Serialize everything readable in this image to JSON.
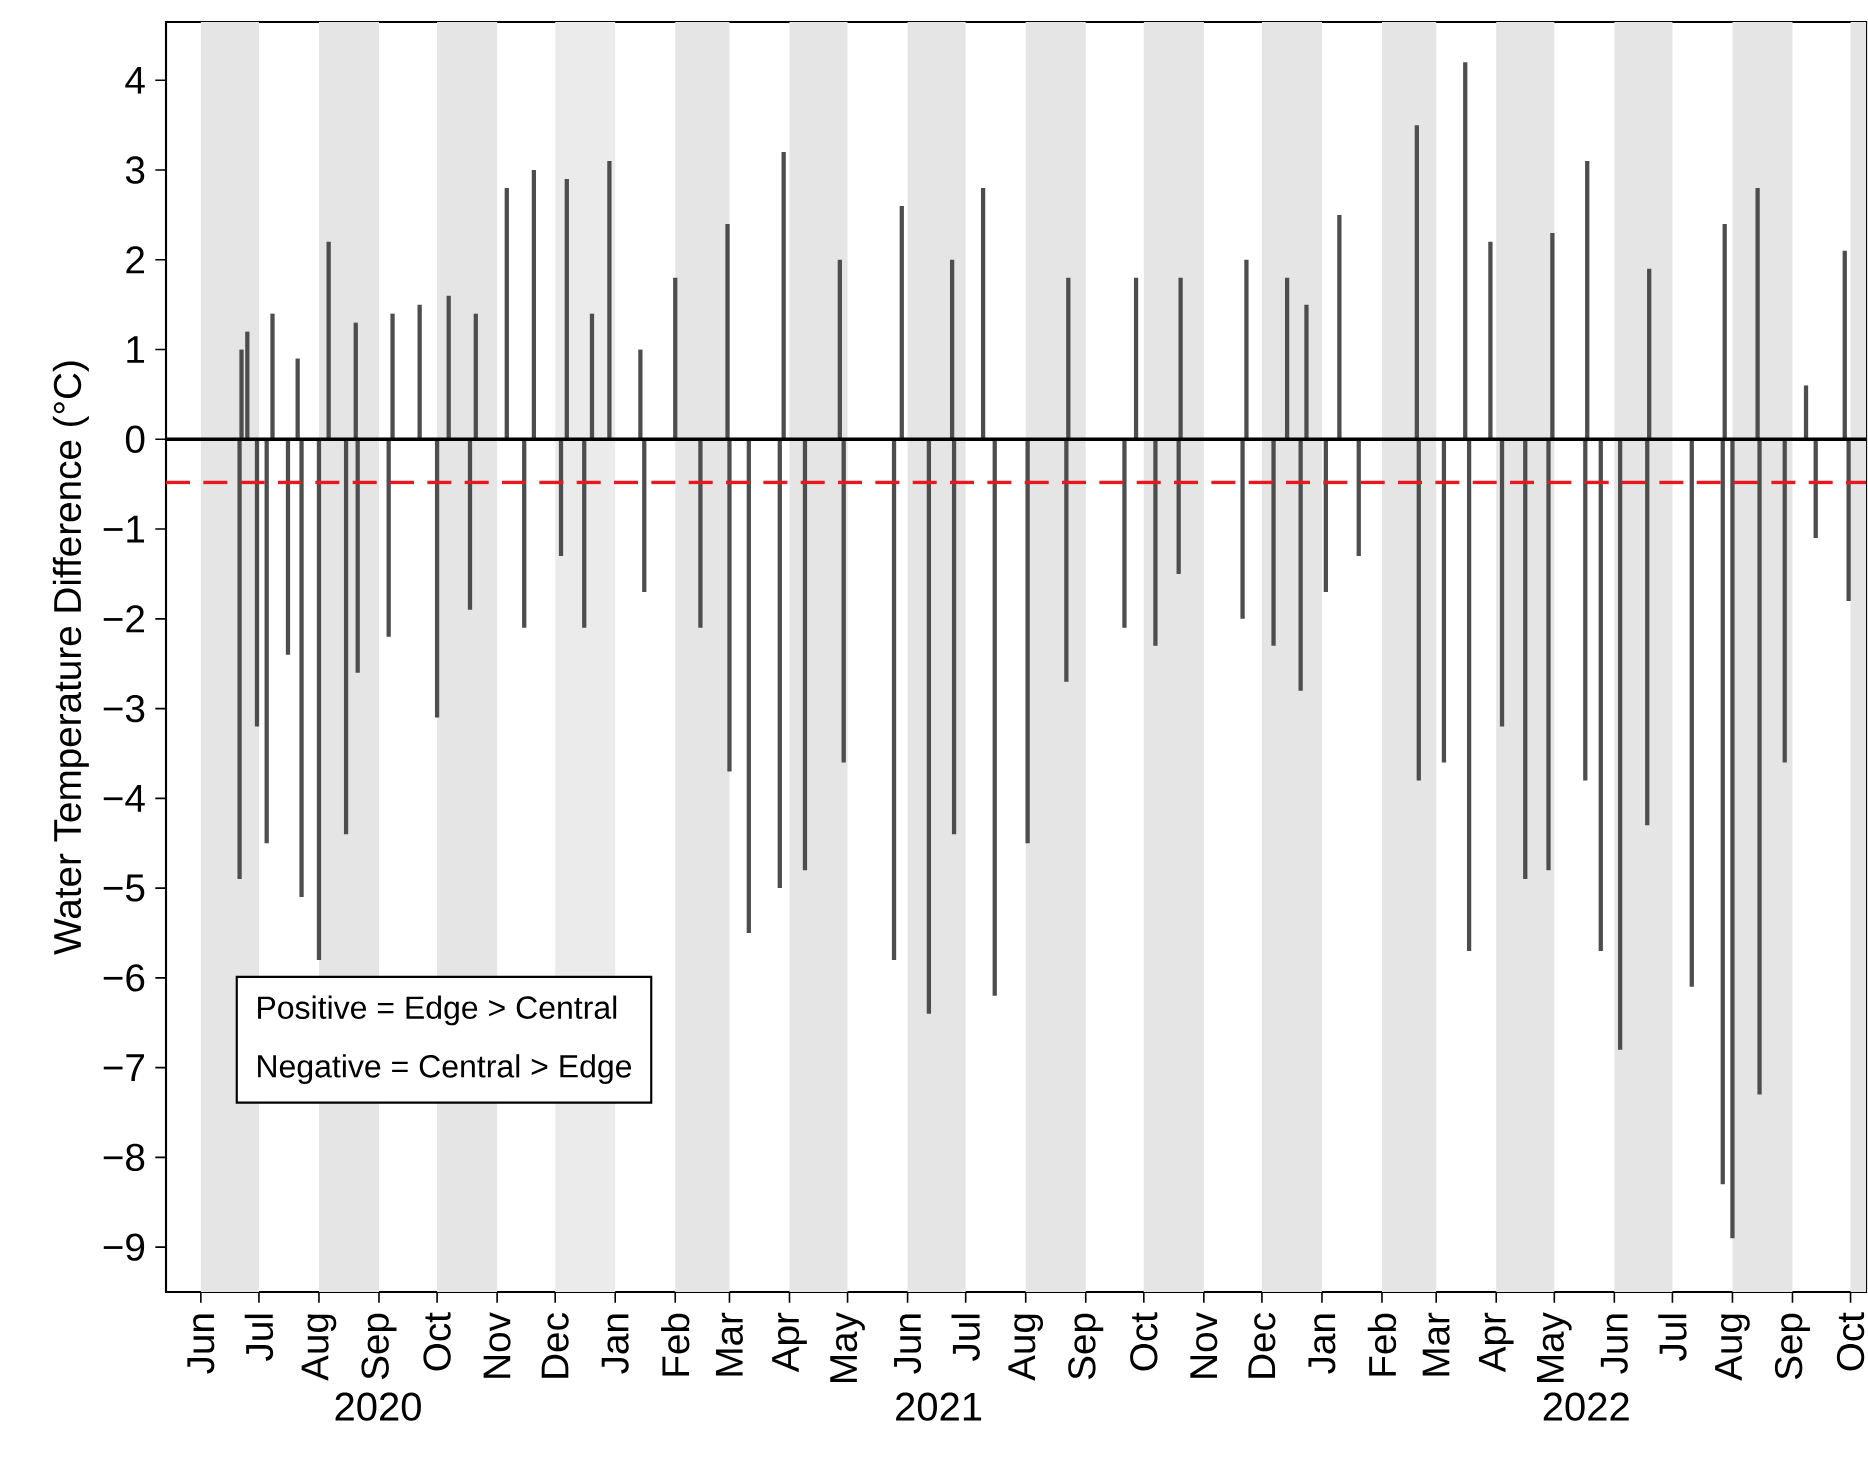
{
  "chart_data": {
    "type": "bar",
    "ylabel": "Water Temperature Difference (°C)",
    "xlim": [
      "2020-05-14",
      "2022-10-09"
    ],
    "ylim": [
      -9.5,
      4.65
    ],
    "xticks": [
      {
        "value": "2020-06-01",
        "label": "Jun"
      },
      {
        "value": "2020-07-01",
        "label": "Jul"
      },
      {
        "value": "2020-08-01",
        "label": "Aug"
      },
      {
        "value": "2020-09-01",
        "label": "Sep"
      },
      {
        "value": "2020-10-01",
        "label": "Oct"
      },
      {
        "value": "2020-11-01",
        "label": "Nov"
      },
      {
        "value": "2020-12-01",
        "label": "Dec"
      },
      {
        "value": "2021-01-01",
        "label": "Jan"
      },
      {
        "value": "2021-02-01",
        "label": "Feb"
      },
      {
        "value": "2021-03-01",
        "label": "Mar"
      },
      {
        "value": "2021-04-01",
        "label": "Apr"
      },
      {
        "value": "2021-05-01",
        "label": "May"
      },
      {
        "value": "2021-06-01",
        "label": "Jun"
      },
      {
        "value": "2021-07-01",
        "label": "Jul"
      },
      {
        "value": "2021-08-01",
        "label": "Aug"
      },
      {
        "value": "2021-09-01",
        "label": "Sep"
      },
      {
        "value": "2021-10-01",
        "label": "Oct"
      },
      {
        "value": "2021-11-01",
        "label": "Nov"
      },
      {
        "value": "2021-12-01",
        "label": "Dec"
      },
      {
        "value": "2022-01-01",
        "label": "Jan"
      },
      {
        "value": "2022-02-01",
        "label": "Feb"
      },
      {
        "value": "2022-03-01",
        "label": "Mar"
      },
      {
        "value": "2022-04-01",
        "label": "Apr"
      },
      {
        "value": "2022-05-01",
        "label": "May"
      },
      {
        "value": "2022-06-01",
        "label": "Jun"
      },
      {
        "value": "2022-07-01",
        "label": "Jul"
      },
      {
        "value": "2022-08-01",
        "label": "Aug"
      },
      {
        "value": "2022-09-01",
        "label": "Sep"
      },
      {
        "value": "2022-10-01",
        "label": "Oct"
      }
    ],
    "yticks": [
      {
        "value": -9,
        "label": "−9"
      },
      {
        "value": -8,
        "label": "−8"
      },
      {
        "value": -7,
        "label": "−7"
      },
      {
        "value": -6,
        "label": "−6"
      },
      {
        "value": -5,
        "label": "−5"
      },
      {
        "value": -4,
        "label": "−4"
      },
      {
        "value": -3,
        "label": "−3"
      },
      {
        "value": -2,
        "label": "−2"
      },
      {
        "value": -1,
        "label": "−1"
      },
      0,
      1,
      2,
      3,
      4
    ],
    "bands": [
      {
        "axis": "x",
        "from": "2020-06-01",
        "to": "2020-07-01",
        "color": "#e5e5e5"
      },
      {
        "axis": "x",
        "from": "2020-08-01",
        "to": "2020-09-01",
        "color": "#e5e5e5"
      },
      {
        "axis": "x",
        "from": "2020-10-01",
        "to": "2020-11-01",
        "color": "#e5e5e5"
      },
      {
        "axis": "x",
        "from": "2020-12-01",
        "to": "2021-01-01",
        "color": "#ebebeb"
      },
      {
        "axis": "x",
        "from": "2021-02-01",
        "to": "2021-03-01",
        "color": "#e5e5e5"
      },
      {
        "axis": "x",
        "from": "2021-04-01",
        "to": "2021-05-01",
        "color": "#e5e5e5"
      },
      {
        "axis": "x",
        "from": "2021-06-01",
        "to": "2021-07-01",
        "color": "#e5e5e5"
      },
      {
        "axis": "x",
        "from": "2021-08-01",
        "to": "2021-09-01",
        "color": "#e5e5e5"
      },
      {
        "axis": "x",
        "from": "2021-10-01",
        "to": "2021-11-01",
        "color": "#e5e5e5"
      },
      {
        "axis": "x",
        "from": "2021-12-01",
        "to": "2022-01-01",
        "color": "#e5e5e5"
      },
      {
        "axis": "x",
        "from": "2022-02-01",
        "to": "2022-03-01",
        "color": "#e5e5e5"
      },
      {
        "axis": "x",
        "from": "2022-04-01",
        "to": "2022-05-01",
        "color": "#e5e5e5"
      },
      {
        "axis": "x",
        "from": "2022-06-01",
        "to": "2022-07-01",
        "color": "#e5e5e5"
      },
      {
        "axis": "x",
        "from": "2022-08-01",
        "to": "2022-09-01",
        "color": "#e5e5e5"
      },
      {
        "axis": "x",
        "from": "2022-10-01",
        "to": "2022-10-09",
        "color": "#e5e5e5"
      }
    ],
    "ref_lines": [
      {
        "axis": "y",
        "value": 0,
        "color": "#000000",
        "line_style": "solid"
      },
      {
        "axis": "y",
        "value": -0.48,
        "color": "#e8191e",
        "line_style": "dashed"
      }
    ],
    "annotations": [
      "Positive = Edge > Central",
      "Negative = Central > Edge",
      "2020",
      "2021",
      "2022"
    ],
    "series": [
      {
        "color": "#4d4d4d",
        "x": [
          "2020-06-21",
          "2020-06-22",
          "2020-06-25",
          "2020-06-30",
          "2020-07-05",
          "2020-07-08",
          "2020-07-16",
          "2020-07-21",
          "2020-07-23",
          "2020-08-01",
          "2020-08-06",
          "2020-08-15",
          "2020-08-20",
          "2020-08-21",
          "2020-09-06",
          "2020-09-08",
          "2020-09-22",
          "2020-10-01",
          "2020-10-07",
          "2020-10-18",
          "2020-10-21",
          "2020-11-06",
          "2020-11-15",
          "2020-11-20",
          "2020-12-04",
          "2020-12-07",
          "2020-12-16",
          "2020-12-20",
          "2020-12-29",
          "2021-01-14",
          "2021-01-16",
          "2021-02-01",
          "2021-02-14",
          "2021-02-28",
          "2021-03-01",
          "2021-03-11",
          "2021-03-27",
          "2021-03-29",
          "2021-04-09",
          "2021-04-27",
          "2021-04-29",
          "2021-05-25",
          "2021-05-29",
          "2021-06-12",
          "2021-06-24",
          "2021-06-25",
          "2021-07-10",
          "2021-07-16",
          "2021-08-02",
          "2021-08-22",
          "2021-08-23",
          "2021-09-21",
          "2021-09-27",
          "2021-10-07",
          "2021-10-19",
          "2021-10-20",
          "2021-11-21",
          "2021-11-23",
          "2021-12-07",
          "2021-12-14",
          "2021-12-21",
          "2021-12-24",
          "2022-01-03",
          "2022-01-10",
          "2022-01-20",
          "2022-02-19",
          "2022-02-20",
          "2022-03-05",
          "2022-03-16",
          "2022-03-18",
          "2022-03-29",
          "2022-04-04",
          "2022-04-16",
          "2022-04-28",
          "2022-04-30",
          "2022-05-17",
          "2022-05-18",
          "2022-05-25",
          "2022-06-04",
          "2022-06-18",
          "2022-06-19",
          "2022-07-11",
          "2022-07-27",
          "2022-07-28",
          "2022-08-01",
          "2022-08-14",
          "2022-08-15",
          "2022-08-28",
          "2022-09-08",
          "2022-09-13",
          "2022-09-28",
          "2022-09-30"
        ],
        "values": [
          -4.9,
          1.0,
          1.2,
          -3.2,
          -4.5,
          1.4,
          -2.4,
          0.9,
          -5.1,
          -5.8,
          2.2,
          -4.4,
          1.3,
          -2.6,
          -2.2,
          1.4,
          1.5,
          -3.1,
          1.6,
          -1.9,
          1.4,
          2.8,
          -2.1,
          3.0,
          -1.3,
          2.9,
          -2.1,
          1.4,
          3.1,
          1.0,
          -1.7,
          1.8,
          -2.1,
          2.4,
          -3.7,
          -5.5,
          -5.0,
          3.2,
          -4.8,
          2.0,
          -3.6,
          -5.8,
          2.6,
          -6.4,
          2.0,
          -4.4,
          2.8,
          -6.2,
          -4.5,
          -2.7,
          1.8,
          -2.1,
          1.8,
          -2.3,
          -1.5,
          1.8,
          -2.0,
          2.0,
          -2.3,
          1.8,
          -2.8,
          1.5,
          -1.7,
          2.5,
          -1.3,
          3.5,
          -3.8,
          -3.6,
          4.2,
          -5.7,
          2.2,
          -3.2,
          -4.9,
          -4.8,
          2.3,
          -3.8,
          3.1,
          -5.7,
          -6.8,
          -4.3,
          1.9,
          -6.1,
          -8.3,
          2.4,
          -8.9,
          2.8,
          -7.3,
          -3.6,
          0.6,
          -1.1,
          2.1,
          -1.8
        ]
      }
    ]
  }
}
